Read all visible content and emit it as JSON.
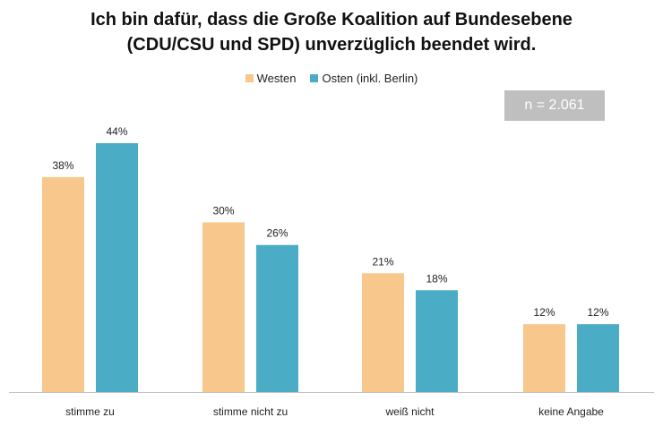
{
  "chart_data": {
    "type": "bar",
    "title_lines": [
      "Ich bin dafür, dass die Große Koalition auf Bundesebene",
      "(CDU/CSU und SPD) unverzüglich beendet wird."
    ],
    "categories": [
      "stimme zu",
      "stimme nicht zu",
      "weiß nicht",
      "keine Angabe"
    ],
    "series": [
      {
        "name": "Westen",
        "values": [
          38,
          30,
          21,
          12
        ],
        "labels": [
          "38%",
          "30%",
          "21%",
          "12%"
        ],
        "color": "#f8c78c"
      },
      {
        "name": "Osten (inkl. Berlin)",
        "values": [
          44,
          26,
          18,
          12
        ],
        "labels": [
          "44%",
          "26%",
          "18%",
          "12%"
        ],
        "color": "#4bacc6"
      }
    ],
    "ylim": [
      0,
      60
    ],
    "legend_position": "top-center",
    "grid": false
  },
  "annotation": {
    "sample_size": "n = 2.061"
  }
}
